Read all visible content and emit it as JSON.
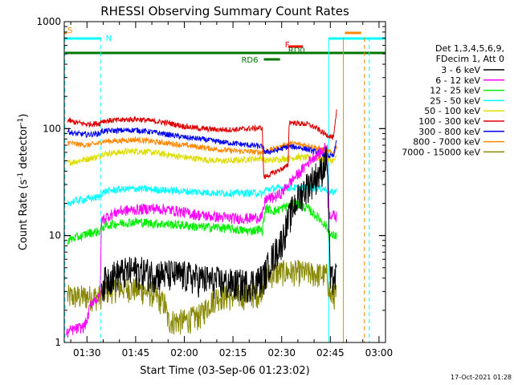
{
  "chart_data": {
    "type": "line",
    "title": "RHESSI Observing Summary Count Rates",
    "xlabel": "Start Time (03-Sep-06 01:23:02)",
    "ylabel_main": "Count Rate (s",
    "ylabel_sup1": "-1",
    "ylabel_mid": " detector",
    "ylabel_sup2": "-1",
    "ylabel_end": ")",
    "yscale": "log",
    "ylim": [
      1,
      1000
    ],
    "xlim_minutes": [
      83,
      182
    ],
    "x_ticks": [
      {
        "label": "01:30",
        "t": 90
      },
      {
        "label": "01:45",
        "t": 105
      },
      {
        "label": "02:00",
        "t": 120
      },
      {
        "label": "02:15",
        "t": 135
      },
      {
        "label": "02:30",
        "t": 150
      },
      {
        "label": "02:45",
        "t": 165
      },
      {
        "label": "03:00",
        "t": 180
      }
    ],
    "y_ticks": [
      {
        "label": "1",
        "v": 1
      },
      {
        "label": "10",
        "v": 10
      },
      {
        "label": "100",
        "v": 100
      },
      {
        "label": "1000",
        "v": 1000
      }
    ],
    "legend": {
      "header1": "Det 1,3,4,5,6,9,",
      "header2": "FDecim 1, Att 0",
      "entries": [
        {
          "label": "3 - 6 keV",
          "color": "#000000"
        },
        {
          "label": "6 - 12 keV",
          "color": "#ff00ff"
        },
        {
          "label": "12 - 25 keV",
          "color": "#00ee00"
        },
        {
          "label": "25 - 50 keV",
          "color": "#00ffff"
        },
        {
          "label": "50 - 100 keV",
          "color": "#dddd00"
        },
        {
          "label": "100 - 300 keV",
          "color": "#dd0000"
        },
        {
          "label": "300 - 800 keV",
          "color": "#0000ee"
        },
        {
          "label": "800 - 7000 keV",
          "color": "#ff8800"
        },
        {
          "label": "7000 - 15000 keV",
          "color": "#888800"
        }
      ]
    },
    "flags": [
      {
        "label": "S",
        "color": "#ff8800",
        "t_start": 83,
        "t_end": 83.8,
        "level": 1
      },
      {
        "label": "N",
        "color": "#00ffff",
        "t_start": 83,
        "t_end": 94.3,
        "level": 2
      },
      {
        "label": "F",
        "color": "#ff0000",
        "t_start": 152.0,
        "t_end": 156.5,
        "level": 3
      },
      {
        "label": "RD0",
        "color": "#007700",
        "t_start": 83,
        "t_end": 182,
        "level": 4
      },
      {
        "label": "RD6",
        "color": "#007700",
        "t_start": 144.5,
        "t_end": 149.5,
        "level": 5
      },
      {
        "label": "",
        "color": "#00ffff",
        "t_start": 164.5,
        "t_end": 182,
        "level": 2
      },
      {
        "label": "",
        "color": "#ff8800",
        "t_start": 169.5,
        "t_end": 174.5,
        "level": 1
      }
    ],
    "vlines": [
      {
        "t": 83.2,
        "color": "#00ffff",
        "dashed": true
      },
      {
        "t": 94.3,
        "color": "#00ffff",
        "dashed": true
      },
      {
        "t": 164.5,
        "color": "#00ffff",
        "dashed": false
      },
      {
        "t": 169.0,
        "color": "#ff8800",
        "dashed": false
      },
      {
        "t": 175.5,
        "color": "#ff8800",
        "dashed": true
      },
      {
        "t": 177.0,
        "color": "#00ffff",
        "dashed": true
      }
    ],
    "series": [
      {
        "name": "3 - 6 keV",
        "color": "#000000",
        "noise": 0.35,
        "points": [
          [
            94.5,
            3.5
          ],
          [
            97,
            4.2
          ],
          [
            100,
            4.5
          ],
          [
            105,
            4.8
          ],
          [
            110,
            4.5
          ],
          [
            115,
            4.4
          ],
          [
            120,
            4.3
          ],
          [
            125,
            4.0
          ],
          [
            130,
            3.8
          ],
          [
            135,
            3.6
          ],
          [
            140,
            3.6
          ],
          [
            144,
            4.0
          ],
          [
            145,
            4.5
          ],
          [
            146,
            5.5
          ],
          [
            148,
            7.0
          ],
          [
            150,
            9.0
          ],
          [
            152,
            14
          ],
          [
            154,
            20
          ],
          [
            156,
            25
          ],
          [
            158,
            30
          ],
          [
            160,
            35
          ],
          [
            162,
            40
          ],
          [
            164,
            55
          ],
          [
            165,
            3.8
          ],
          [
            166,
            4.0
          ],
          [
            167,
            4.2
          ]
        ]
      },
      {
        "name": "6 - 12 keV",
        "color": "#ff00ff",
        "noise": 0.12,
        "points": [
          [
            83.5,
            1.2
          ],
          [
            85,
            1.3
          ],
          [
            89,
            1.4
          ],
          [
            90,
            1.6
          ],
          [
            91,
            2.2
          ],
          [
            92,
            2.5
          ],
          [
            94,
            2.6
          ],
          [
            94.5,
            14
          ],
          [
            96,
            15
          ],
          [
            100,
            17
          ],
          [
            105,
            17.5
          ],
          [
            110,
            18
          ],
          [
            115,
            17.5
          ],
          [
            120,
            16.5
          ],
          [
            125,
            15.5
          ],
          [
            130,
            15
          ],
          [
            135,
            14.5
          ],
          [
            140,
            14.5
          ],
          [
            144,
            15
          ],
          [
            145,
            22
          ],
          [
            148,
            23
          ],
          [
            150,
            25
          ],
          [
            152,
            30
          ],
          [
            154,
            35
          ],
          [
            156,
            40
          ],
          [
            158,
            48
          ],
          [
            160,
            55
          ],
          [
            162,
            60
          ],
          [
            164,
            70
          ],
          [
            164.6,
            16
          ],
          [
            167,
            15
          ]
        ]
      },
      {
        "name": "12 - 25 keV",
        "color": "#00ee00",
        "noise": 0.1,
        "points": [
          [
            84,
            9
          ],
          [
            86,
            9.5
          ],
          [
            89,
            10
          ],
          [
            90,
            10.5
          ],
          [
            94,
            11
          ],
          [
            94.5,
            12
          ],
          [
            96,
            12.5
          ],
          [
            100,
            13
          ],
          [
            105,
            13.5
          ],
          [
            110,
            13
          ],
          [
            115,
            12.8
          ],
          [
            120,
            12.5
          ],
          [
            125,
            12
          ],
          [
            130,
            12
          ],
          [
            135,
            11.5
          ],
          [
            140,
            11
          ],
          [
            143,
            11.5
          ],
          [
            144,
            11
          ],
          [
            145,
            18
          ],
          [
            148,
            17
          ],
          [
            150,
            18
          ],
          [
            152,
            19
          ],
          [
            154,
            20
          ],
          [
            156,
            19
          ],
          [
            158,
            18
          ],
          [
            160,
            16
          ],
          [
            162,
            14
          ],
          [
            164,
            12
          ],
          [
            164.6,
            10
          ],
          [
            167,
            10
          ]
        ]
      },
      {
        "name": "25 - 50 keV",
        "color": "#00ffff",
        "noise": 0.08,
        "points": [
          [
            84,
            20
          ],
          [
            86,
            21
          ],
          [
            90,
            22
          ],
          [
            94,
            23
          ],
          [
            94.5,
            25
          ],
          [
            96,
            26
          ],
          [
            100,
            27
          ],
          [
            105,
            27.5
          ],
          [
            110,
            27
          ],
          [
            115,
            26.5
          ],
          [
            120,
            26
          ],
          [
            125,
            25.5
          ],
          [
            130,
            25
          ],
          [
            135,
            25
          ],
          [
            140,
            25
          ],
          [
            143,
            25
          ],
          [
            144,
            24
          ],
          [
            145,
            27
          ],
          [
            150,
            28
          ],
          [
            155,
            28
          ],
          [
            160,
            28
          ],
          [
            164,
            27
          ],
          [
            164.6,
            25
          ],
          [
            167,
            26
          ]
        ]
      },
      {
        "name": "50 - 100 keV",
        "color": "#dddd00",
        "noise": 0.07,
        "points": [
          [
            84,
            48
          ],
          [
            86,
            49
          ],
          [
            90,
            52
          ],
          [
            94,
            55
          ],
          [
            94.5,
            58
          ],
          [
            100,
            60
          ],
          [
            105,
            62
          ],
          [
            110,
            60
          ],
          [
            115,
            57
          ],
          [
            120,
            54
          ],
          [
            125,
            52
          ],
          [
            130,
            50
          ],
          [
            135,
            50
          ],
          [
            140,
            52
          ],
          [
            144,
            53
          ],
          [
            145,
            50
          ],
          [
            150,
            52
          ],
          [
            155,
            54
          ],
          [
            160,
            53
          ],
          [
            164,
            52
          ],
          [
            166,
            50
          ],
          [
            167,
            54
          ]
        ]
      },
      {
        "name": "100 - 300 keV",
        "color": "#dd0000",
        "noise": 0.06,
        "points": [
          [
            84,
            120
          ],
          [
            86,
            115
          ],
          [
            90,
            110
          ],
          [
            94,
            112
          ],
          [
            94.5,
            118
          ],
          [
            100,
            120
          ],
          [
            105,
            123
          ],
          [
            110,
            118
          ],
          [
            115,
            113
          ],
          [
            120,
            105
          ],
          [
            125,
            100
          ],
          [
            130,
            98
          ],
          [
            135,
            98
          ],
          [
            140,
            100
          ],
          [
            144,
            102
          ],
          [
            144.5,
            35
          ],
          [
            147,
            38
          ],
          [
            150,
            42
          ],
          [
            152,
            45
          ],
          [
            152.3,
            115
          ],
          [
            155,
            112
          ],
          [
            158,
            110
          ],
          [
            161,
            100
          ],
          [
            163,
            90
          ],
          [
            165,
            85
          ],
          [
            166,
            82
          ],
          [
            167,
            150
          ]
        ]
      },
      {
        "name": "300 - 800 keV",
        "color": "#0000ee",
        "noise": 0.06,
        "points": [
          [
            84,
            95
          ],
          [
            86,
            90
          ],
          [
            90,
            88
          ],
          [
            94,
            90
          ],
          [
            94.5,
            95
          ],
          [
            100,
            96
          ],
          [
            105,
            97
          ],
          [
            110,
            93
          ],
          [
            115,
            88
          ],
          [
            120,
            83
          ],
          [
            125,
            80
          ],
          [
            130,
            76
          ],
          [
            135,
            73
          ],
          [
            140,
            70
          ],
          [
            144,
            68
          ],
          [
            145,
            60
          ],
          [
            148,
            62
          ],
          [
            150,
            65
          ],
          [
            152,
            68
          ],
          [
            155,
            67
          ],
          [
            158,
            64
          ],
          [
            161,
            60
          ],
          [
            164,
            56
          ],
          [
            166,
            55
          ],
          [
            167,
            80
          ]
        ]
      },
      {
        "name": "800 - 7000 keV",
        "color": "#ff8800",
        "noise": 0.06,
        "points": [
          [
            84,
            75
          ],
          [
            86,
            72
          ],
          [
            90,
            70
          ],
          [
            94,
            73
          ],
          [
            94.5,
            76
          ],
          [
            100,
            77
          ],
          [
            105,
            79
          ],
          [
            110,
            76
          ],
          [
            115,
            73
          ],
          [
            120,
            70
          ],
          [
            125,
            67
          ],
          [
            130,
            64
          ],
          [
            135,
            62
          ],
          [
            140,
            61
          ],
          [
            144,
            60
          ],
          [
            145,
            62
          ],
          [
            148,
            65
          ],
          [
            150,
            68
          ],
          [
            152,
            72
          ],
          [
            154,
            72
          ],
          [
            158,
            70
          ],
          [
            161,
            66
          ],
          [
            164,
            62
          ],
          [
            166,
            58
          ],
          [
            167,
            70
          ]
        ]
      },
      {
        "name": "7000 - 15000 keV",
        "color": "#888800",
        "noise": 0.28,
        "points": [
          [
            84,
            2.7
          ],
          [
            86,
            2.7
          ],
          [
            90,
            2.7
          ],
          [
            94,
            2.7
          ],
          [
            95,
            3.0
          ],
          [
            100,
            3.3
          ],
          [
            105,
            3.2
          ],
          [
            110,
            2.9
          ],
          [
            114,
            2.3
          ],
          [
            115,
            1.6
          ],
          [
            120,
            1.6
          ],
          [
            125,
            1.8
          ],
          [
            128,
            2.4
          ],
          [
            130,
            2.7
          ],
          [
            135,
            2.7
          ],
          [
            140,
            2.8
          ],
          [
            143,
            2.9
          ],
          [
            145,
            4.2
          ],
          [
            148,
            4.5
          ],
          [
            150,
            4.6
          ],
          [
            155,
            4.6
          ],
          [
            160,
            4.4
          ],
          [
            164,
            4.3
          ],
          [
            165,
            2.7
          ],
          [
            167,
            2.8
          ]
        ]
      }
    ],
    "timestamp": "17-Oct-2021 01:28"
  }
}
